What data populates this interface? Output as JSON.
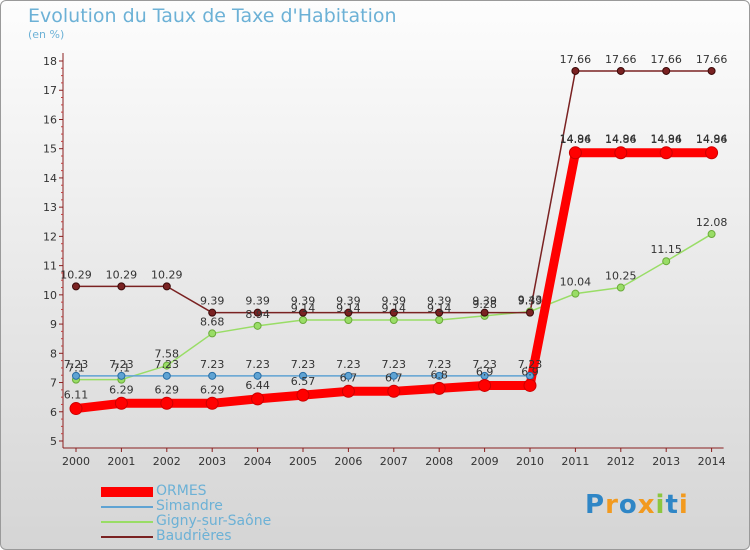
{
  "header": {
    "title": "Evolution du Taux de Taxe d'Habitation",
    "unit": "(en %)"
  },
  "logo": {
    "text": "Proxiti"
  },
  "chart_data": {
    "type": "line",
    "title": "Evolution du Taux de Taxe d'Habitation",
    "ylabel": "(en %)",
    "xlabel": "",
    "x": [
      "2000",
      "2001",
      "2002",
      "2003",
      "2004",
      "2005",
      "2006",
      "2007",
      "2008",
      "2009",
      "2010",
      "2011",
      "2012",
      "2013",
      "2014"
    ],
    "ylim": [
      5,
      18
    ],
    "yticks": [
      5,
      6,
      7,
      8,
      9,
      10,
      11,
      12,
      13,
      14,
      15,
      16,
      17,
      18
    ],
    "grid": false,
    "legend_position": "bottom-left",
    "series": [
      {
        "name": "ORMES",
        "color": "#ff0000",
        "values": [
          6.11,
          6.29,
          6.29,
          6.29,
          6.44,
          6.57,
          6.7,
          6.7,
          6.8,
          6.9,
          6.9,
          14.86,
          14.86,
          14.86,
          14.86
        ],
        "labels": [
          "6.11",
          "6.29",
          "6.29",
          "6.29",
          "6.44",
          "6.57",
          "6.7",
          "6.7",
          "6.8",
          "6.9",
          "6.9",
          "14.86",
          "14.86",
          "14.86",
          "14.86"
        ]
      },
      {
        "name": "Simandre",
        "color": "#5fa3d3",
        "values": [
          7.23,
          7.23,
          7.23,
          7.23,
          7.23,
          7.23,
          7.23,
          7.23,
          7.23,
          7.23,
          7.23,
          14.94,
          14.94,
          14.94,
          14.94
        ],
        "labels": [
          "7.23",
          "7.23",
          "7.23",
          "7.23",
          "7.23",
          "7.23",
          "7.23",
          "7.23",
          "7.23",
          "7.23",
          "7.23",
          "14.94",
          "14.94",
          "14.94",
          "14.94"
        ]
      },
      {
        "name": "Gigny-sur-Saône",
        "color": "#99dd66",
        "values": [
          7.1,
          7.1,
          7.58,
          8.68,
          8.94,
          9.14,
          9.14,
          9.14,
          9.14,
          9.28,
          9.43,
          10.04,
          10.25,
          11.15,
          12.08
        ],
        "labels": [
          "7.1",
          "7.1",
          "7.58",
          "8.68",
          "8.94",
          "9.14",
          "9.14",
          "9.14",
          "9.14",
          "9.28",
          "9.43",
          "10.04",
          "10.25",
          "11.15",
          "12.08"
        ]
      },
      {
        "name": "Baudrières",
        "color": "#7a2222",
        "values": [
          10.29,
          10.29,
          10.29,
          9.39,
          9.39,
          9.39,
          9.39,
          9.39,
          9.39,
          9.39,
          9.39,
          17.66,
          17.66,
          17.66,
          17.66
        ],
        "labels": [
          "10.29",
          "10.29",
          "10.29",
          "9.39",
          "9.39",
          "9.39",
          "9.39",
          "9.39",
          "9.39",
          "9.39",
          "9.39",
          "17.66",
          "17.66",
          "17.66",
          "17.66"
        ]
      }
    ]
  }
}
